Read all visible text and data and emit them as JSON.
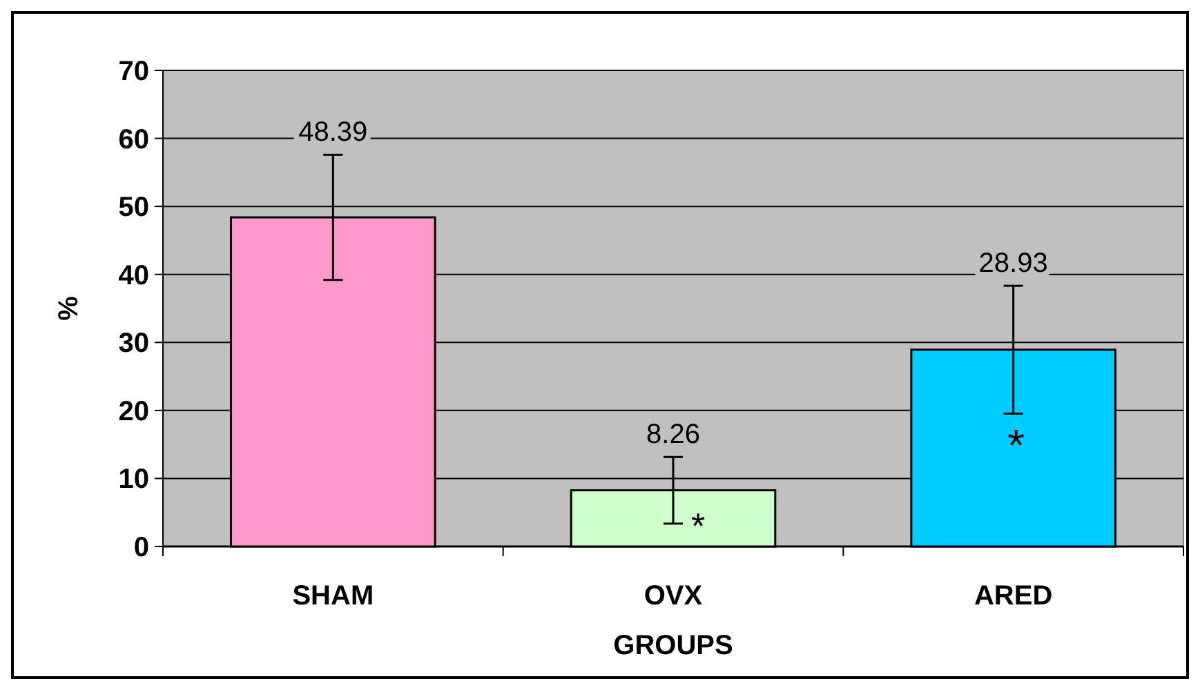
{
  "chart_data": {
    "type": "bar",
    "xlabel": "GROUPS",
    "ylabel": "%",
    "categories": [
      "SHAM",
      "OVX",
      "ARED"
    ],
    "values": [
      48.39,
      8.26,
      28.93
    ],
    "colors": [
      "#ff99cc",
      "#ccffcc",
      "#00ccff"
    ],
    "errors": [
      9.2,
      4.9,
      9.4
    ],
    "value_labels": [
      "48.39",
      "8.26",
      "28.93"
    ],
    "ylim": [
      0,
      70
    ],
    "yticks": [
      0,
      10,
      20,
      30,
      40,
      50,
      60,
      70
    ],
    "grid": "y",
    "annotations": [
      "*",
      "*"
    ]
  }
}
